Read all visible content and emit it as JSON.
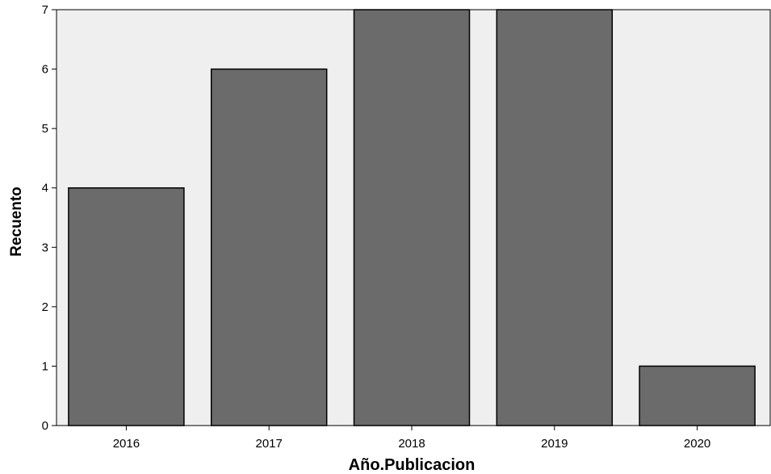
{
  "chart_data": {
    "type": "bar",
    "categories": [
      "2016",
      "2017",
      "2018",
      "2019",
      "2020"
    ],
    "values": [
      4,
      6,
      7,
      7,
      1
    ],
    "xlabel": "Año.Publicacion",
    "ylabel": "Recuento",
    "ylim": [
      0,
      7
    ],
    "yticks": [
      0,
      1,
      2,
      3,
      4,
      5,
      6,
      7
    ],
    "grid": false,
    "colors": {
      "plot_background": "#efefef",
      "bar_fill": "#6b6b6b",
      "bar_stroke": "#000000"
    }
  }
}
